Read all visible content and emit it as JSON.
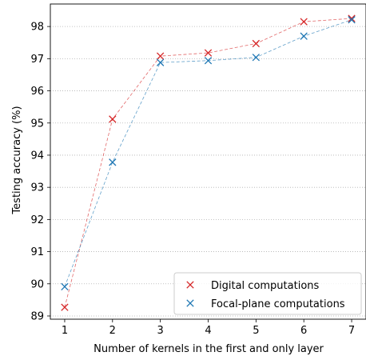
{
  "chart_data": {
    "type": "line",
    "xlabel": "Number of kernels in the first and only layer",
    "ylabel": "Testing accuracy (%)",
    "x": [
      1,
      2,
      3,
      4,
      5,
      6,
      7
    ],
    "xlim": [
      0.7,
      7.3
    ],
    "ylim": [
      88.9,
      98.7
    ],
    "xticks": [
      "1",
      "2",
      "3",
      "4",
      "5",
      "6",
      "7"
    ],
    "yticks": [
      "89",
      "90",
      "91",
      "92",
      "93",
      "94",
      "95",
      "96",
      "97",
      "98"
    ],
    "grid": "horizontal dotted",
    "legend_position": "lower-right",
    "series": [
      {
        "name": "Digital computations",
        "color": "#d62728",
        "marker": "x",
        "values": [
          89.27,
          95.12,
          97.08,
          97.18,
          97.47,
          98.15,
          98.25
        ]
      },
      {
        "name": "Focal-plane computations",
        "color": "#1f77b4",
        "marker": "x",
        "values": [
          89.91,
          93.78,
          96.88,
          96.94,
          97.04,
          97.7,
          98.21
        ]
      }
    ]
  }
}
